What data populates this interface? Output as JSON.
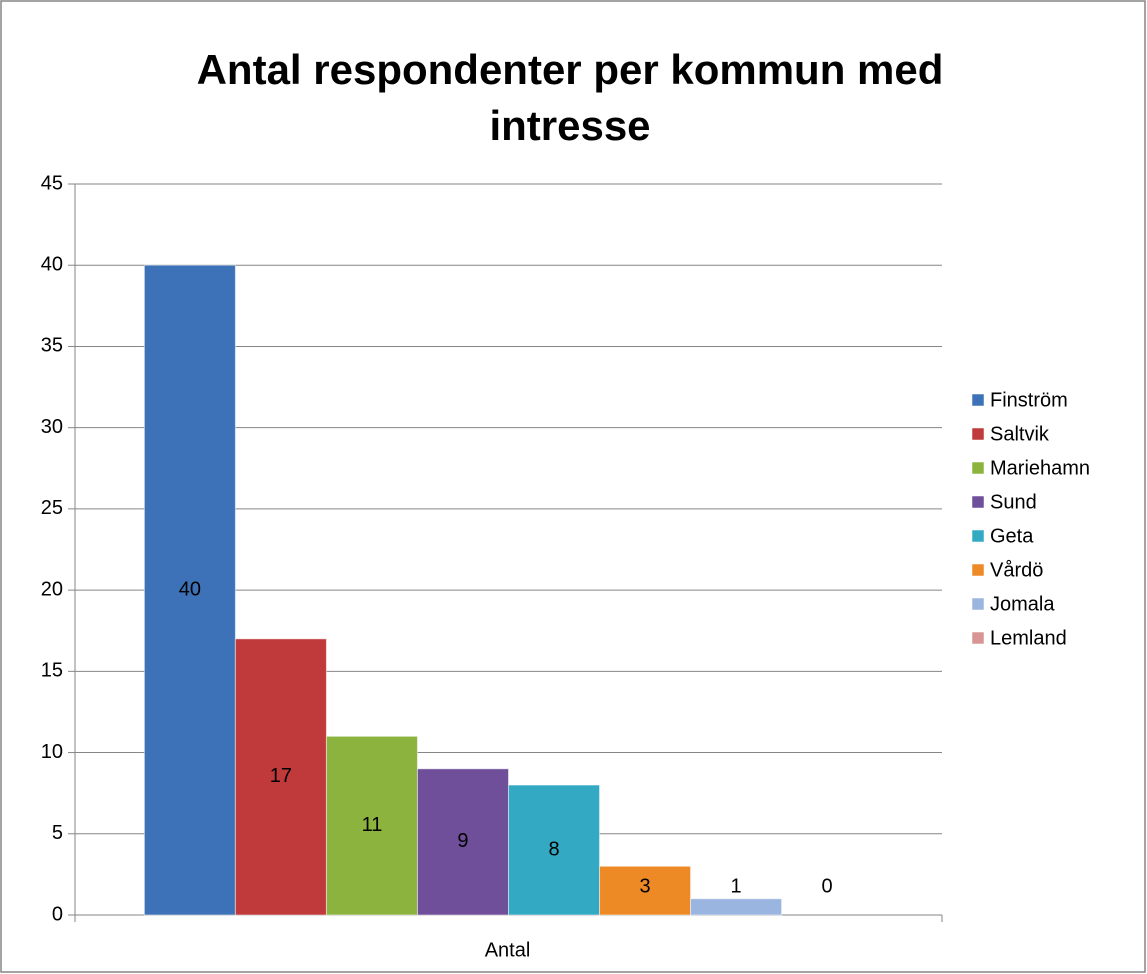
{
  "chart_data": {
    "type": "bar",
    "title": "Antal respondenter per kommun med intresse",
    "categories": [
      "Antal"
    ],
    "series": [
      {
        "name": "Finström",
        "color": "#3d72b8",
        "values": [
          40
        ]
      },
      {
        "name": "Saltvik",
        "color": "#c0393b",
        "values": [
          17
        ]
      },
      {
        "name": "Mariehamn",
        "color": "#8db33f",
        "values": [
          11
        ]
      },
      {
        "name": "Sund",
        "color": "#6f4e9a",
        "values": [
          9
        ]
      },
      {
        "name": "Geta",
        "color": "#33a9c3",
        "values": [
          8
        ]
      },
      {
        "name": "Vårdö",
        "color": "#ee8a26",
        "values": [
          3
        ]
      },
      {
        "name": "Jomala",
        "color": "#9ab6e0",
        "values": [
          1
        ]
      },
      {
        "name": "Lemland",
        "color": "#d99594",
        "values": [
          0
        ]
      }
    ],
    "ylim": [
      0,
      45
    ],
    "yticks": [
      0,
      5,
      10,
      15,
      20,
      25,
      30,
      35,
      40,
      45
    ],
    "grid": true,
    "legend": "right",
    "data_labels": true
  }
}
